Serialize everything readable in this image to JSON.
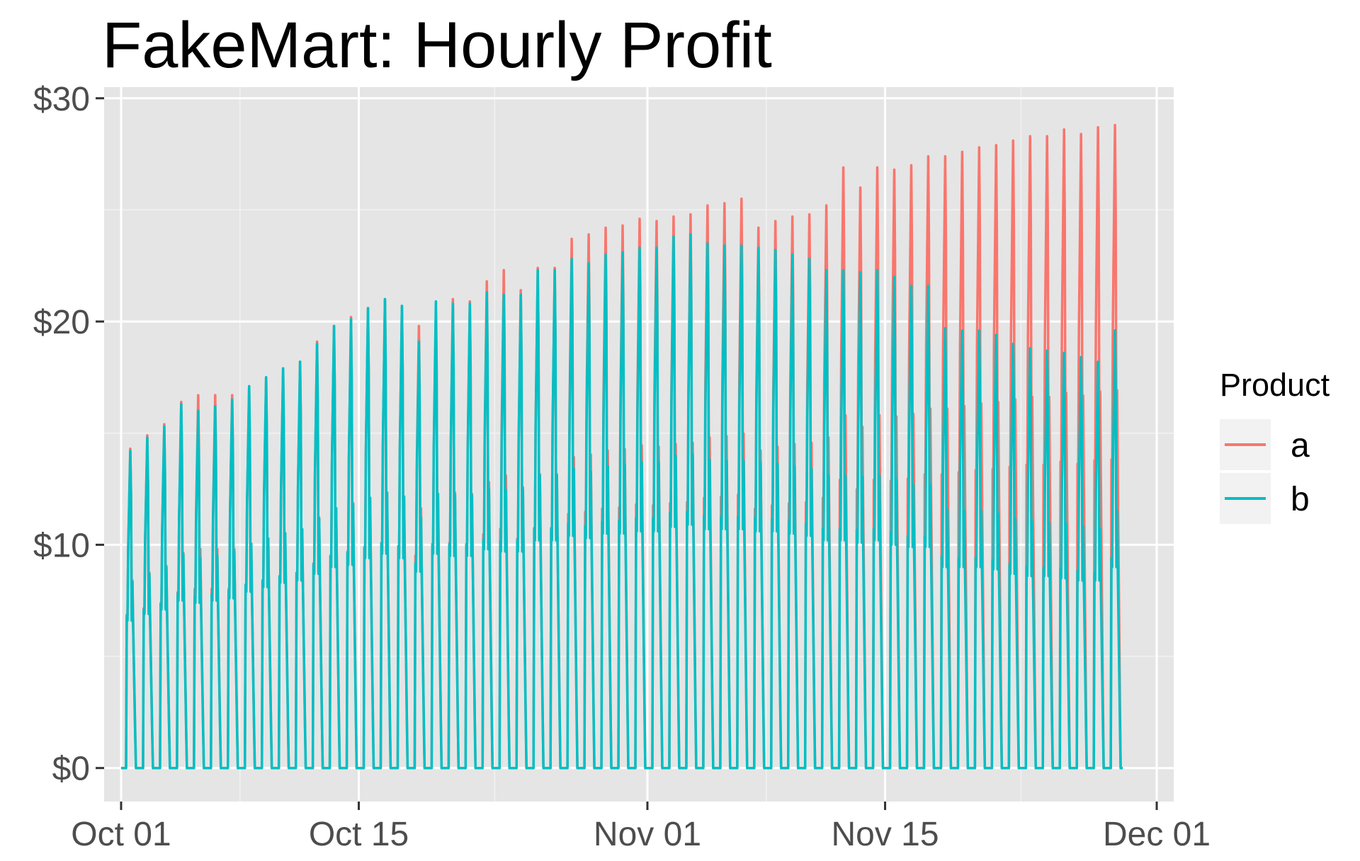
{
  "chart_data": {
    "type": "line",
    "title": "FakeMart: Hourly Profit",
    "xlabel": "",
    "ylabel": "",
    "x_type": "date",
    "x_range": [
      "2023-09-30",
      "2023-12-02"
    ],
    "y_range": [
      -1.5,
      30.5
    ],
    "y_ticks": [
      0,
      10,
      20,
      30
    ],
    "y_tick_labels": [
      "$0",
      "$10",
      "$20",
      "$30"
    ],
    "y_minor_ticks": [
      5,
      15,
      25
    ],
    "x_ticks": [
      "2023-10-01",
      "2023-10-15",
      "2023-11-01",
      "2023-11-15",
      "2023-12-01"
    ],
    "x_tick_labels": [
      "Oct 01",
      "Oct 15",
      "Nov 01",
      "Nov 15",
      "Dec 01"
    ],
    "x_minor_ticks": [
      "2023-10-08",
      "2023-10-23",
      "2023-11-08",
      "2023-11-23"
    ],
    "grid": true,
    "background": "#e5e5e5",
    "legend": {
      "title": "Product",
      "position": "right"
    },
    "series": [
      {
        "name": "a",
        "color": "#f8766d",
        "daily_start": "2023-10-01",
        "daily_open_hours": [
          8,
          20
        ],
        "daily_peak": [
          14.3,
          14.9,
          15.4,
          16.4,
          16.7,
          16.7,
          16.7,
          17.1,
          17.5,
          17.9,
          18.2,
          19.1,
          19.8,
          20.2,
          20.6,
          21.0,
          20.7,
          19.8,
          20.4,
          21.0,
          20.9,
          21.8,
          22.3,
          21.4,
          22.4,
          22.4,
          23.7,
          23.9,
          24.2,
          24.3,
          24.6,
          24.5,
          24.7,
          24.8,
          25.2,
          25.3,
          25.5,
          24.2,
          24.5,
          24.7,
          24.8,
          25.2,
          26.9,
          26.0,
          26.9,
          26.8,
          27.0,
          27.4,
          27.4,
          27.6,
          27.8,
          27.9,
          28.1,
          28.3,
          28.3,
          28.6,
          28.4,
          28.7,
          28.8
        ],
        "daily_mid": [
          6.8,
          7.0,
          7.2,
          7.6,
          7.8,
          7.9,
          7.9,
          8.0,
          8.2,
          8.4,
          8.5,
          8.8,
          9.0,
          9.2,
          9.5,
          9.7,
          9.6,
          9.4,
          9.6,
          9.8,
          9.8,
          10.1,
          10.3,
          10.0,
          10.3,
          10.4,
          11.0,
          11.1,
          11.2,
          11.3,
          11.4,
          11.4,
          11.5,
          11.5,
          11.7,
          11.7,
          11.8,
          11.3,
          11.4,
          11.5,
          11.5,
          11.7,
          12.4,
          12.1,
          12.4,
          12.4,
          12.5,
          12.7,
          12.7,
          12.8,
          12.9,
          12.9,
          13.0,
          13.1,
          13.1,
          13.2,
          13.2,
          13.3,
          13.3
        ]
      },
      {
        "name": "b",
        "color": "#00bfc4",
        "daily_start": "2023-10-01",
        "daily_open_hours": [
          8,
          20
        ],
        "daily_peak": [
          14.2,
          14.8,
          15.3,
          16.3,
          16.0,
          16.2,
          16.5,
          17.1,
          17.5,
          17.9,
          18.2,
          19.0,
          19.8,
          20.1,
          20.6,
          21.0,
          20.7,
          19.1,
          20.9,
          20.8,
          20.8,
          21.3,
          21.2,
          21.2,
          22.3,
          22.3,
          22.8,
          22.6,
          23.0,
          23.1,
          23.3,
          23.3,
          23.8,
          23.9,
          23.5,
          23.4,
          23.4,
          23.3,
          23.2,
          23.0,
          22.8,
          22.3,
          22.3,
          22.2,
          22.3,
          22.0,
          21.6,
          21.6,
          19.7,
          19.6,
          19.6,
          19.4,
          19.0,
          18.8,
          18.7,
          18.6,
          18.4,
          18.2,
          19.6
        ],
        "daily_mid": [
          6.6,
          6.9,
          7.1,
          7.5,
          7.4,
          7.5,
          7.6,
          7.9,
          8.1,
          8.3,
          8.4,
          8.7,
          9.0,
          9.1,
          9.4,
          9.6,
          9.4,
          8.8,
          9.6,
          9.5,
          9.5,
          9.8,
          9.7,
          9.7,
          10.2,
          10.2,
          10.4,
          10.3,
          10.5,
          10.5,
          10.6,
          10.6,
          10.8,
          10.9,
          10.7,
          10.7,
          10.7,
          10.6,
          10.6,
          10.5,
          10.4,
          10.2,
          10.2,
          10.1,
          10.2,
          10.0,
          9.9,
          9.9,
          9.0,
          9.0,
          9.0,
          8.9,
          8.7,
          8.6,
          8.6,
          8.5,
          8.4,
          8.4,
          9.0
        ]
      }
    ]
  }
}
